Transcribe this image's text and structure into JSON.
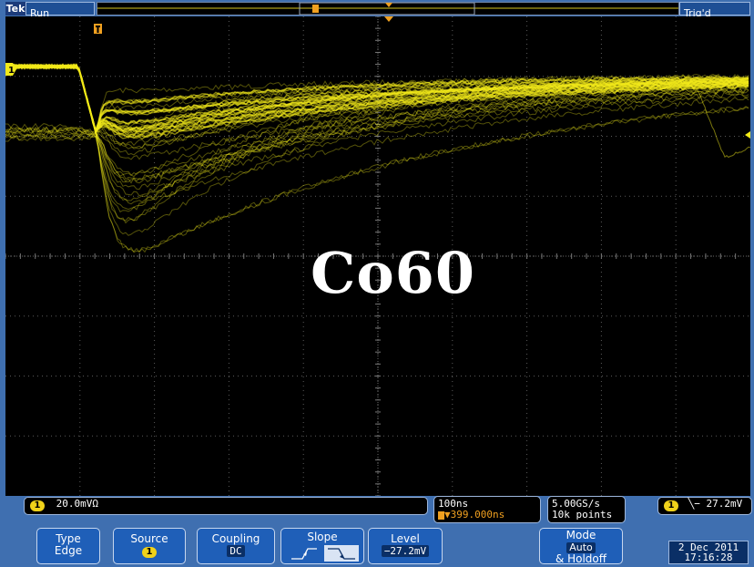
{
  "topbar": {
    "brand": "Tek",
    "acq_state": "Run",
    "trigger_status": "Trig'd"
  },
  "overlay": {
    "label": "Co60"
  },
  "channel": {
    "number": "1",
    "scale": "20.0mVΩ"
  },
  "timebase": {
    "scale": "100ns",
    "trigger_position": "▼399.000ns"
  },
  "acquisition": {
    "sample_rate": "5.00GS/s",
    "record_length": "10k points"
  },
  "trigger": {
    "source": "1",
    "slope_symbol": "⧹",
    "level": "− 27.2mV"
  },
  "menu": {
    "type_label": "Type",
    "type_value": "Edge",
    "source_label": "Source",
    "source_value": "1",
    "coupling_label": "Coupling",
    "coupling_value": "DC",
    "slope_label": "Slope",
    "level_label": "Level",
    "level_value": "−27.2mV",
    "mode_label": "Mode",
    "mode_value": "Auto",
    "holdoff_label": "& Holdoff"
  },
  "datetime": {
    "date": "2 Dec 2011",
    "time": "17:16:28"
  },
  "colors": {
    "trace": "#f2ea1a",
    "panel_blue": "#3f6fb0",
    "button_blue": "#1f5fb8",
    "trigger_marker": "#f0a020"
  }
}
